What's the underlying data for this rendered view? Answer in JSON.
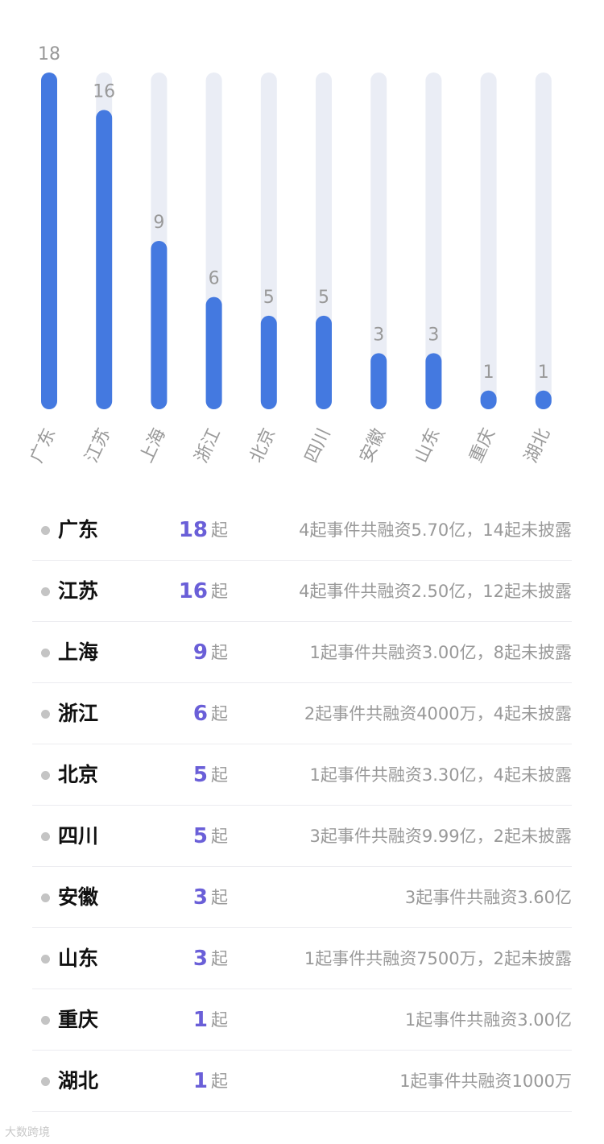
{
  "chart_data": {
    "type": "bar",
    "categories": [
      "广东",
      "江苏",
      "上海",
      "浙江",
      "北京",
      "四川",
      "安徽",
      "山东",
      "重庆",
      "湖北"
    ],
    "values": [
      18,
      16,
      9,
      6,
      5,
      5,
      3,
      3,
      1,
      1
    ],
    "ylim": [
      0,
      18
    ],
    "colors": {
      "bar": "#4479e0",
      "track": "#eaedf5",
      "label": "#999999"
    }
  },
  "list": {
    "unit": "起",
    "items": [
      {
        "province": "广东",
        "count": "18",
        "desc": "4起事件共融资5.70亿，14起未披露"
      },
      {
        "province": "江苏",
        "count": "16",
        "desc": "4起事件共融资2.50亿，12起未披露"
      },
      {
        "province": "上海",
        "count": "9",
        "desc": "1起事件共融资3.00亿，8起未披露"
      },
      {
        "province": "浙江",
        "count": "6",
        "desc": "2起事件共融资4000万，4起未披露"
      },
      {
        "province": "北京",
        "count": "5",
        "desc": "1起事件共融资3.30亿，4起未披露"
      },
      {
        "province": "四川",
        "count": "5",
        "desc": "3起事件共融资9.99亿，2起未披露"
      },
      {
        "province": "安徽",
        "count": "3",
        "desc": "3起事件共融资3.60亿"
      },
      {
        "province": "山东",
        "count": "3",
        "desc": "1起事件共融资7500万，2起未披露"
      },
      {
        "province": "重庆",
        "count": "1",
        "desc": "1起事件共融资3.00亿"
      },
      {
        "province": "湖北",
        "count": "1",
        "desc": "1起事件共融资1000万"
      }
    ]
  },
  "watermark": "大数跨境"
}
